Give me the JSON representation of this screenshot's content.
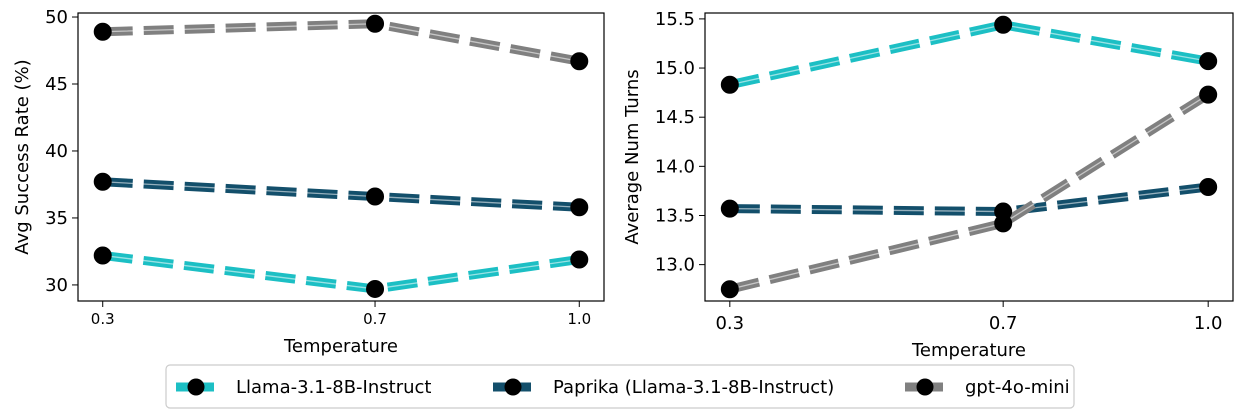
{
  "chart_data": [
    {
      "type": "line",
      "title": "",
      "xlabel": "Temperature",
      "ylabel": "Avg Success Rate (%)",
      "x": [
        0.3,
        0.7,
        1.0
      ],
      "x_tick_labels": [
        "0.3",
        "0.7",
        "1.0"
      ],
      "ylim": [
        28.8,
        50.3
      ],
      "y_ticks": [
        30,
        35,
        40,
        45,
        50
      ],
      "y_tick_labels": [
        "30",
        "35",
        "40",
        "45",
        "50"
      ],
      "series": [
        {
          "name": "Llama-3.1-8B-Instruct",
          "color": "#1cbfc4",
          "values": [
            32.2,
            29.7,
            31.9
          ]
        },
        {
          "name": "Paprika (Llama-3.1-8B-Instruct)",
          "color": "#134f6b",
          "values": [
            37.7,
            36.6,
            35.8
          ]
        },
        {
          "name": "gpt-4o-mini",
          "color": "#808080",
          "values": [
            48.9,
            49.5,
            46.7
          ]
        }
      ]
    },
    {
      "type": "line",
      "title": "",
      "xlabel": "Temperature",
      "ylabel": "Average Num Turns",
      "x": [
        0.3,
        0.7,
        1.0
      ],
      "x_tick_labels": [
        "0.3",
        "0.7",
        "1.0"
      ],
      "ylim": [
        12.63,
        15.56
      ],
      "y_ticks": [
        13.0,
        13.5,
        14.0,
        14.5,
        15.0,
        15.5
      ],
      "y_tick_labels": [
        "13.0",
        "13.5",
        "14.0",
        "14.5",
        "15.0",
        "15.5"
      ],
      "series": [
        {
          "name": "Llama-3.1-8B-Instruct",
          "color": "#1cbfc4",
          "values": [
            14.83,
            15.44,
            15.07
          ]
        },
        {
          "name": "Paprika (Llama-3.1-8B-Instruct)",
          "color": "#134f6b",
          "values": [
            13.57,
            13.54,
            13.79
          ]
        },
        {
          "name": "gpt-4o-mini",
          "color": "#808080",
          "values": [
            12.75,
            13.42,
            14.73
          ]
        }
      ]
    }
  ],
  "legend": {
    "placement": "bottom-center",
    "entries": [
      "Llama-3.1-8B-Instruct",
      "Paprika (Llama-3.1-8B-Instruct)",
      "gpt-4o-mini"
    ]
  }
}
